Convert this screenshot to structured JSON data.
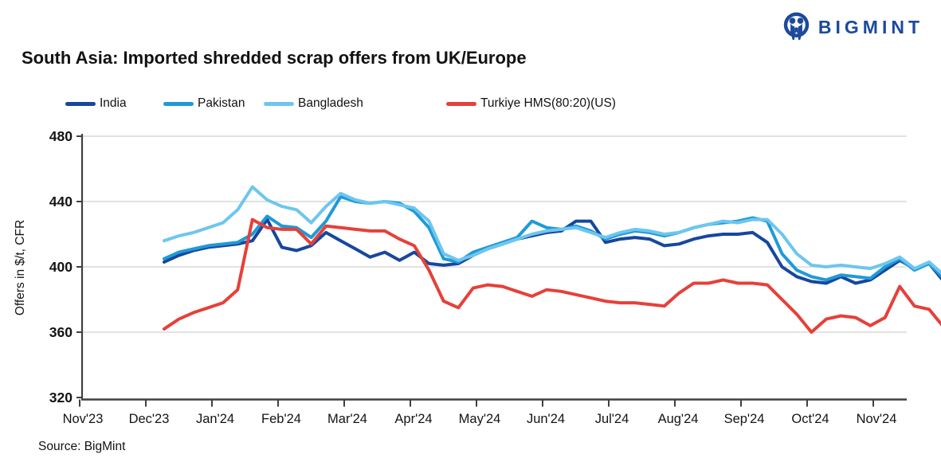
{
  "logo": {
    "brand": "BIGMINT",
    "icon": "people-circle-icon",
    "color": "#1c4a9c"
  },
  "title": "South Asia: Imported shredded scrap offers from UK/Europe",
  "source": "Source: BigMint",
  "legend": {
    "items": [
      {
        "label": "India",
        "color": "#17479e"
      },
      {
        "label": "Pakistan",
        "color": "#1f9ad7"
      },
      {
        "label": "Bangladesh",
        "color": "#6ec6ee"
      },
      {
        "label": "Turkiye HMS(80:20)(US)",
        "color": "#e6403a"
      }
    ]
  },
  "chart_data": {
    "type": "line",
    "title": "South Asia: Imported shredded scrap offers from UK/Europe",
    "xlabel": "",
    "ylabel": "Offers in $/t, CFR",
    "ylim": [
      320,
      480
    ],
    "yticks": [
      320,
      360,
      400,
      440,
      480
    ],
    "grid": "horizontal",
    "legend_position": "top",
    "x_tick_labels": [
      "Nov'23",
      "Dec'23",
      "Jan'24",
      "Feb'24",
      "Mar'24",
      "Apr'24",
      "May'24",
      "Jun'24",
      "Jul'24",
      "Aug'24",
      "Sep'24",
      "Oct'24",
      "Nov'24"
    ],
    "x_unit": "week_index_0_to_56",
    "series": [
      {
        "name": "India",
        "color": "#17479e",
        "values": [
          403,
          407,
          410,
          412,
          413,
          414,
          416,
          429,
          412,
          410,
          413,
          421,
          416,
          411,
          406,
          409,
          404,
          409,
          402,
          401,
          402,
          407,
          411,
          414,
          417,
          419,
          421,
          422,
          428,
          428,
          415,
          417,
          418,
          417,
          413,
          414,
          417,
          419,
          420,
          420,
          421,
          415,
          400,
          394,
          391,
          390,
          394,
          390,
          392,
          398,
          404,
          399,
          402,
          391,
          388,
          394,
          386
        ]
      },
      {
        "name": "Pakistan",
        "color": "#1f9ad7",
        "values": [
          405,
          409,
          411,
          413,
          414,
          415,
          420,
          431,
          425,
          424,
          418,
          428,
          443,
          440,
          439,
          440,
          439,
          434,
          424,
          405,
          403,
          409,
          412,
          415,
          418,
          428,
          424,
          423,
          425,
          422,
          417,
          420,
          422,
          421,
          419,
          421,
          424,
          426,
          427,
          428,
          430,
          428,
          408,
          398,
          394,
          392,
          395,
          394,
          393,
          400,
          405,
          398,
          402,
          393,
          390,
          397,
          388
        ]
      },
      {
        "name": "Bangladesh",
        "color": "#6ec6ee",
        "values": [
          416,
          419,
          421,
          424,
          427,
          435,
          449,
          441,
          437,
          435,
          427,
          437,
          445,
          441,
          439,
          440,
          438,
          436,
          428,
          408,
          404,
          407,
          411,
          414,
          417,
          420,
          422,
          423,
          424,
          421,
          418,
          421,
          423,
          422,
          420,
          421,
          424,
          426,
          428,
          427,
          429,
          429,
          420,
          408,
          401,
          400,
          401,
          400,
          399,
          402,
          406,
          399,
          403,
          395,
          392,
          401,
          390
        ]
      },
      {
        "name": "Turkiye HMS(80:20)(US)",
        "color": "#e6403a",
        "values": [
          362,
          368,
          372,
          375,
          378,
          386,
          429,
          424,
          423,
          423,
          414,
          425,
          424,
          423,
          422,
          422,
          417,
          413,
          398,
          379,
          375,
          387,
          389,
          388,
          385,
          382,
          386,
          385,
          383,
          381,
          379,
          378,
          378,
          377,
          376,
          384,
          390,
          390,
          392,
          390,
          390,
          389,
          380,
          371,
          360,
          368,
          370,
          369,
          364,
          369,
          388,
          376,
          374,
          363,
          365,
          361,
          356
        ]
      }
    ]
  }
}
